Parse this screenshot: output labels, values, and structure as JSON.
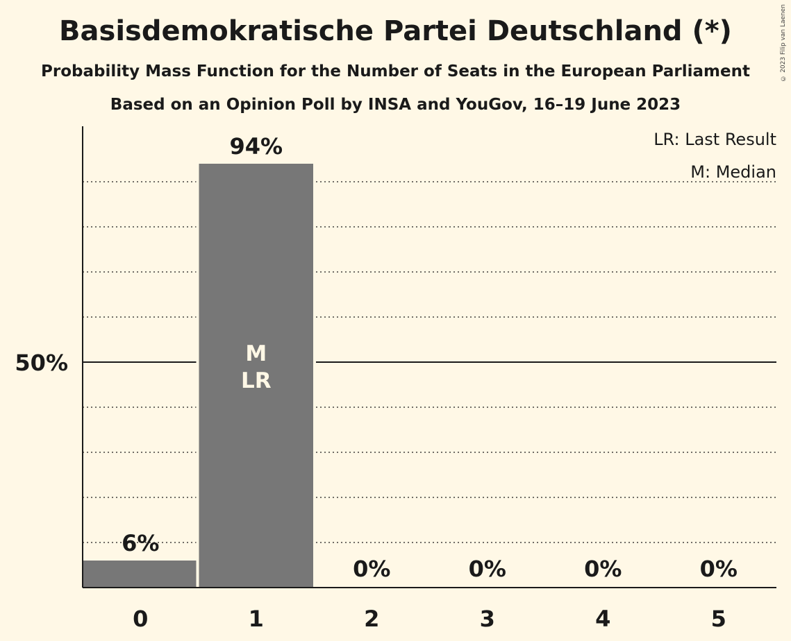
{
  "title": "Basisdemokratische Partei Deutschland (*)",
  "subtitle1": "Probability Mass Function for the Number of Seats in the European Parliament",
  "subtitle2": "Based on an Opinion Poll by INSA and YouGov, 16–19 June 2023",
  "copyright": "© 2023 Filip van Laenen",
  "legend": {
    "last_result": "LR: Last Result",
    "median": "M: Median"
  },
  "colors": {
    "background": "#fff8e6",
    "bar": "#777777",
    "text": "#1a1a1a"
  },
  "chart_data": {
    "type": "bar",
    "categories": [
      "0",
      "1",
      "2",
      "3",
      "4",
      "5"
    ],
    "values": [
      6,
      94,
      0,
      0,
      0,
      0
    ],
    "value_labels": [
      "6%",
      "94%",
      "0%",
      "0%",
      "0%",
      "0%"
    ],
    "ylim": [
      0,
      100
    ],
    "y_ticks": [
      {
        "value": 50,
        "label": "50%"
      }
    ],
    "gridlines_dotted": [
      10,
      20,
      30,
      40,
      60,
      70,
      80,
      90
    ],
    "bar_annotations": [
      {
        "category": "1",
        "lines": [
          "M",
          "LR"
        ]
      }
    ],
    "grid": true,
    "legend_placement": "top-right"
  }
}
